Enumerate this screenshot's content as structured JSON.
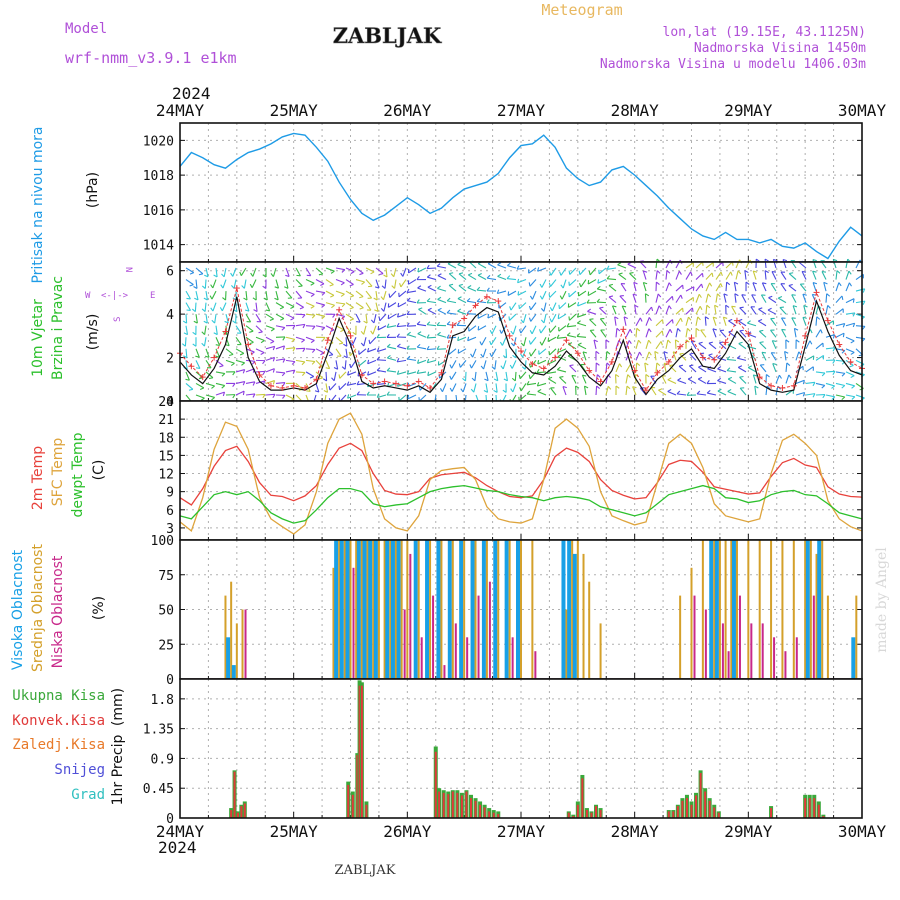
{
  "header": {
    "model_label": "Model",
    "model_name": "wrf-nmm_v3.9.1  e1km",
    "station": "ZABLJAK",
    "product": "Meteogram",
    "lonlat": "lon,lat (19.15E, 43.1125N)",
    "elevation": "Nadmorska Visina 1450m",
    "model_elevation": "Nadmorska Visina u modelu 1406.03m",
    "watermark": "made by Angel",
    "footer_station": "ZABLJAK"
  },
  "time_axis": {
    "year_label": "2024",
    "day_labels": [
      "24MAY",
      "25MAY",
      "26MAY",
      "27MAY",
      "28MAY",
      "29MAY",
      "30MAY"
    ]
  },
  "colors": {
    "pressure": "#1e9be6",
    "temp_2m": "#e8423c",
    "temp_sfc": "#dea43c",
    "dewpoint": "#2cc02c",
    "cloud_high": "#18a0e6",
    "cloud_mid": "#d4a02a",
    "cloud_low": "#c8288a",
    "precip_total": "#3aa83a",
    "precip_conv": "#e03a3a",
    "precip_frozen": "#e87a2a",
    "snow": "#5050d8",
    "graupel": "#30c0c0",
    "wind_speed": "#111111",
    "wind_gust": "#e83a3a",
    "legend_purple": "#b050d8"
  },
  "chart_data": [
    {
      "type": "line",
      "panel": "pressure",
      "ylabel_lines": [
        "Pritisak na nivou mora"
      ],
      "unit": "(hPa)",
      "ylim": [
        1013,
        1021
      ],
      "yticks": [
        1014,
        1016,
        1018,
        1020
      ],
      "x_days": [
        0,
        0.1,
        0.2,
        0.3,
        0.4,
        0.5,
        0.6,
        0.7,
        0.8,
        0.9,
        1.0,
        1.1,
        1.2,
        1.3,
        1.4,
        1.5,
        1.6,
        1.7,
        1.8,
        1.9,
        2.0,
        2.1,
        2.2,
        2.3,
        2.4,
        2.5,
        2.6,
        2.7,
        2.8,
        2.9,
        3.0,
        3.1,
        3.2,
        3.3,
        3.4,
        3.5,
        3.6,
        3.7,
        3.8,
        3.9,
        4.0,
        4.1,
        4.2,
        4.3,
        4.4,
        4.5,
        4.6,
        4.7,
        4.8,
        4.9,
        5.0,
        5.1,
        5.2,
        5.3,
        5.4,
        5.5,
        5.6,
        5.7,
        5.8,
        5.9,
        6.0
      ],
      "values": [
        1018.5,
        1019.3,
        1019.0,
        1018.6,
        1018.4,
        1018.9,
        1019.3,
        1019.5,
        1019.8,
        1020.2,
        1020.4,
        1020.3,
        1019.6,
        1018.8,
        1017.6,
        1016.6,
        1015.8,
        1015.4,
        1015.7,
        1016.2,
        1016.7,
        1016.3,
        1015.8,
        1016.1,
        1016.7,
        1017.2,
        1017.4,
        1017.6,
        1018.1,
        1019.0,
        1019.7,
        1019.8,
        1020.3,
        1019.6,
        1018.4,
        1017.8,
        1017.4,
        1017.6,
        1018.3,
        1018.5,
        1018.0,
        1017.4,
        1016.8,
        1016.1,
        1015.5,
        1014.9,
        1014.5,
        1014.3,
        1014.7,
        1014.3,
        1014.3,
        1014.1,
        1014.3,
        1013.9,
        1013.8,
        1014.1,
        1013.6,
        1013.2,
        1014.2,
        1015.0,
        1014.5
      ],
      "series": [
        {
          "values_ref": "values"
        }
      ]
    },
    {
      "type": "line",
      "panel": "wind",
      "ylabel_lines": [
        "10m Vjetar",
        "Brzina i Pravac"
      ],
      "unit": "(m/s)",
      "direction_legend": {
        "n": "N",
        "s": "S",
        "w": "W",
        "e": "E",
        "arrows": "<-|->"
      },
      "ylim": [
        0,
        6.4
      ],
      "yticks": [
        0,
        2,
        4,
        6
      ],
      "x_days": [
        0,
        0.1,
        0.2,
        0.3,
        0.4,
        0.5,
        0.6,
        0.7,
        0.8,
        0.9,
        1.0,
        1.1,
        1.2,
        1.3,
        1.4,
        1.5,
        1.6,
        1.7,
        1.8,
        1.9,
        2.0,
        2.1,
        2.2,
        2.3,
        2.4,
        2.5,
        2.6,
        2.7,
        2.8,
        2.9,
        3.0,
        3.1,
        3.2,
        3.3,
        3.4,
        3.5,
        3.6,
        3.7,
        3.8,
        3.9,
        4.0,
        4.1,
        4.2,
        4.3,
        4.4,
        4.5,
        4.6,
        4.7,
        4.8,
        4.9,
        5.0,
        5.1,
        5.2,
        5.3,
        5.4,
        5.5,
        5.6,
        5.7,
        5.8,
        5.9,
        6.0
      ],
      "series": [
        {
          "role": "speed",
          "values": [
            1.8,
            1.2,
            0.8,
            1.5,
            2.6,
            4.8,
            2.0,
            0.9,
            0.5,
            0.5,
            0.6,
            0.5,
            0.8,
            2.2,
            3.8,
            2.6,
            0.9,
            0.6,
            0.7,
            0.6,
            0.5,
            0.7,
            0.4,
            1.0,
            3.0,
            3.2,
            3.9,
            4.3,
            4.1,
            2.5,
            1.8,
            1.3,
            1.2,
            1.6,
            2.3,
            1.8,
            1.1,
            0.7,
            1.4,
            2.8,
            1.1,
            0.3,
            1.0,
            1.4,
            2.0,
            2.4,
            1.6,
            1.5,
            2.2,
            3.2,
            2.6,
            0.8,
            0.5,
            0.4,
            0.5,
            2.5,
            4.6,
            3.2,
            2.1,
            1.4,
            1.2
          ]
        },
        {
          "role": "gust",
          "values": [
            2.2,
            1.6,
            1.1,
            2.0,
            3.2,
            5.2,
            2.6,
            1.2,
            0.7,
            0.6,
            0.7,
            0.6,
            1.0,
            2.8,
            4.2,
            3.0,
            1.2,
            0.8,
            0.9,
            0.8,
            0.7,
            0.9,
            0.6,
            1.3,
            3.5,
            3.8,
            4.4,
            4.8,
            4.6,
            3.0,
            2.3,
            1.7,
            1.5,
            2.0,
            2.8,
            2.2,
            1.4,
            0.9,
            1.8,
            3.3,
            1.4,
            0.5,
            1.3,
            1.8,
            2.5,
            2.9,
            2.0,
            1.9,
            2.7,
            3.7,
            3.1,
            1.1,
            0.7,
            0.6,
            0.7,
            3.0,
            5.0,
            3.7,
            2.6,
            1.8,
            1.5
          ]
        }
      ]
    },
    {
      "type": "line",
      "panel": "temperature",
      "ylabel_lines": [
        "2m Temp",
        "SFC Temp",
        "dewpt Temp"
      ],
      "unit": "(C)",
      "ylim": [
        1,
        24
      ],
      "yticks": [
        3,
        6,
        9,
        12,
        15,
        18,
        21,
        24
      ],
      "x_days": [
        0,
        0.1,
        0.2,
        0.3,
        0.4,
        0.5,
        0.6,
        0.7,
        0.8,
        0.9,
        1.0,
        1.1,
        1.2,
        1.3,
        1.4,
        1.5,
        1.6,
        1.7,
        1.8,
        1.9,
        2.0,
        2.1,
        2.2,
        2.3,
        2.4,
        2.5,
        2.6,
        2.7,
        2.8,
        2.9,
        3.0,
        3.1,
        3.2,
        3.3,
        3.4,
        3.5,
        3.6,
        3.7,
        3.8,
        3.9,
        4.0,
        4.1,
        4.2,
        4.3,
        4.4,
        4.5,
        4.6,
        4.7,
        4.8,
        4.9,
        5.0,
        5.1,
        5.2,
        5.3,
        5.4,
        5.5,
        5.6,
        5.7,
        5.8,
        5.9,
        6.0
      ],
      "series": [
        {
          "name": "2m Temp",
          "values": [
            8.0,
            6.8,
            9.5,
            13.2,
            15.8,
            16.5,
            14.0,
            10.5,
            8.4,
            8.2,
            7.5,
            8.3,
            10.0,
            13.5,
            16.2,
            17.0,
            15.8,
            12.0,
            9.2,
            8.6,
            8.5,
            9.0,
            11.2,
            11.8,
            12.0,
            12.2,
            11.3,
            10.0,
            9.0,
            8.2,
            8.0,
            8.3,
            11.0,
            14.8,
            16.2,
            15.5,
            14.0,
            11.0,
            9.2,
            8.4,
            7.8,
            8.0,
            10.5,
            13.5,
            14.2,
            14.0,
            12.2,
            9.8,
            9.4,
            9.0,
            8.6,
            8.8,
            11.5,
            13.8,
            14.5,
            13.4,
            13.0,
            9.8,
            8.6,
            8.2,
            8.1
          ]
        },
        {
          "name": "SFC Temp",
          "values": [
            4.0,
            2.5,
            8.0,
            16.0,
            20.5,
            19.8,
            16.0,
            8.0,
            4.5,
            3.2,
            2.0,
            3.5,
            9.0,
            17.0,
            21.0,
            22.0,
            18.5,
            9.5,
            4.5,
            3.0,
            2.5,
            5.0,
            11.0,
            12.5,
            12.8,
            13.0,
            11.0,
            6.5,
            4.5,
            4.0,
            3.8,
            4.5,
            11.0,
            19.5,
            21.0,
            19.5,
            16.5,
            9.0,
            5.0,
            4.2,
            3.5,
            4.0,
            10.5,
            17.0,
            18.5,
            17.0,
            13.0,
            7.0,
            5.0,
            4.5,
            4.0,
            4.5,
            12.0,
            17.5,
            18.5,
            17.0,
            15.0,
            7.5,
            4.5,
            3.2,
            2.5
          ]
        },
        {
          "name": "dewpt Temp",
          "values": [
            5.0,
            4.5,
            6.5,
            8.5,
            9.0,
            8.5,
            9.0,
            7.5,
            5.5,
            4.5,
            3.8,
            4.2,
            6.0,
            8.0,
            9.5,
            9.5,
            9.0,
            7.0,
            6.5,
            6.8,
            7.0,
            8.0,
            9.0,
            9.5,
            9.8,
            10.0,
            9.6,
            9.2,
            9.0,
            8.5,
            8.2,
            8.0,
            7.5,
            8.0,
            8.2,
            8.0,
            7.6,
            6.5,
            6.0,
            5.5,
            5.0,
            5.5,
            7.0,
            8.5,
            9.0,
            9.5,
            10.0,
            9.5,
            8.0,
            7.8,
            7.2,
            7.5,
            8.5,
            9.0,
            9.2,
            8.5,
            8.3,
            7.0,
            5.5,
            5.0,
            4.5
          ]
        }
      ]
    },
    {
      "type": "bar",
      "panel": "clouds",
      "ylabel_lines": [
        "Visoka Oblacnost",
        "Srednja Oblacnost",
        "Niska Oblacnost"
      ],
      "unit": "(%)",
      "ylim": [
        0,
        100
      ],
      "yticks": [
        0,
        25,
        50,
        75,
        100
      ],
      "x_days": [
        0.4,
        0.45,
        0.5,
        0.55,
        0.6,
        1.35,
        1.4,
        1.45,
        1.5,
        1.55,
        1.6,
        1.65,
        1.7,
        1.75,
        1.8,
        1.85,
        1.9,
        1.95,
        2.0,
        2.1,
        2.2,
        2.3,
        2.4,
        2.5,
        2.6,
        2.7,
        2.8,
        2.9,
        3.0,
        3.1,
        3.4,
        3.45,
        3.5,
        3.55,
        3.6,
        3.7,
        4.4,
        4.5,
        4.6,
        4.7,
        4.75,
        4.8,
        4.85,
        4.9,
        5.0,
        5.1,
        5.2,
        5.3,
        5.4,
        5.5,
        5.55,
        5.6,
        5.65,
        5.7,
        5.95
      ],
      "series": [
        {
          "name": "Visoka Oblacnost",
          "values": [
            0,
            30,
            10,
            0,
            0,
            0,
            100,
            100,
            100,
            0,
            100,
            100,
            100,
            100,
            0,
            100,
            100,
            100,
            0,
            100,
            100,
            100,
            100,
            100,
            100,
            100,
            100,
            100,
            100,
            0,
            100,
            100,
            90,
            0,
            0,
            0,
            0,
            0,
            0,
            100,
            100,
            0,
            0,
            100,
            0,
            0,
            0,
            0,
            0,
            0,
            100,
            0,
            100,
            0,
            30
          ]
        },
        {
          "name": "Srednja Oblacnost",
          "values": [
            60,
            70,
            40,
            50,
            0,
            80,
            100,
            100,
            100,
            100,
            100,
            100,
            100,
            100,
            100,
            100,
            100,
            100,
            100,
            100,
            100,
            100,
            100,
            100,
            100,
            100,
            100,
            100,
            100,
            100,
            50,
            100,
            100,
            90,
            70,
            40,
            60,
            80,
            100,
            100,
            100,
            100,
            100,
            100,
            100,
            100,
            100,
            100,
            100,
            100,
            100,
            90,
            100,
            60,
            60
          ]
        },
        {
          "name": "Niska Oblacnost",
          "values": [
            20,
            0,
            0,
            50,
            0,
            0,
            60,
            40,
            80,
            60,
            50,
            90,
            40,
            0,
            20,
            60,
            90,
            50,
            90,
            30,
            60,
            10,
            40,
            30,
            60,
            70,
            0,
            30,
            0,
            20,
            0,
            0,
            0,
            0,
            0,
            0,
            0,
            60,
            50,
            30,
            40,
            20,
            70,
            60,
            40,
            40,
            30,
            20,
            30,
            0,
            60,
            0,
            0,
            0,
            0
          ]
        }
      ]
    },
    {
      "type": "bar",
      "panel": "precipitation",
      "ylabel_lines": [
        "1hr Precip"
      ],
      "unit": "(mm)",
      "legend": [
        "Ukupna Kisa",
        "Konvek.Kisa",
        "Zaledj.Kisa",
        "Snijeg",
        "Grad"
      ],
      "ylim": [
        0,
        2.1
      ],
      "yticks": [
        0,
        0.45,
        0.9,
        1.35,
        1.8
      ],
      "x_days": [
        0.45,
        0.48,
        0.51,
        0.54,
        0.57,
        1.48,
        1.52,
        1.56,
        1.58,
        1.6,
        1.64,
        2.25,
        2.28,
        2.32,
        2.36,
        2.4,
        2.44,
        2.48,
        2.52,
        2.56,
        2.6,
        2.64,
        2.68,
        2.72,
        2.76,
        2.8,
        3.42,
        3.46,
        3.5,
        3.54,
        3.58,
        3.62,
        3.66,
        3.7,
        4.3,
        4.34,
        4.38,
        4.42,
        4.46,
        4.5,
        4.54,
        4.58,
        4.62,
        4.66,
        4.7,
        4.74,
        5.2,
        5.5,
        5.54,
        5.58,
        5.62,
        5.66
      ],
      "series": [
        {
          "name": "Ukupna Kisa",
          "values": [
            0.15,
            0.72,
            0.1,
            0.2,
            0.25,
            0.55,
            0.4,
            0.98,
            2.08,
            2.05,
            0.25,
            1.08,
            0.45,
            0.42,
            0.4,
            0.42,
            0.42,
            0.38,
            0.42,
            0.35,
            0.3,
            0.25,
            0.2,
            0.15,
            0.12,
            0.1,
            0.1,
            0.05,
            0.25,
            0.65,
            0.15,
            0.1,
            0.2,
            0.15,
            0.12,
            0.12,
            0.2,
            0.3,
            0.35,
            0.25,
            0.38,
            0.72,
            0.45,
            0.3,
            0.2,
            0.1,
            0.18,
            0.35,
            0.35,
            0.35,
            0.25,
            0.05
          ]
        },
        {
          "name": "Konvek.Kisa",
          "values": [
            0.12,
            0.7,
            0.08,
            0.18,
            0.22,
            0.5,
            0.35,
            0.95,
            2.0,
            2.0,
            0.2,
            1.0,
            0.4,
            0.38,
            0.36,
            0.4,
            0.38,
            0.34,
            0.4,
            0.3,
            0.26,
            0.2,
            0.16,
            0.1,
            0.08,
            0.06,
            0.08,
            0.03,
            0.2,
            0.6,
            0.12,
            0.08,
            0.18,
            0.12,
            0.1,
            0.1,
            0.18,
            0.26,
            0.3,
            0.2,
            0.34,
            0.68,
            0.4,
            0.26,
            0.16,
            0.08,
            0.15,
            0.3,
            0.3,
            0.3,
            0.2,
            0.03
          ]
        }
      ]
    }
  ]
}
